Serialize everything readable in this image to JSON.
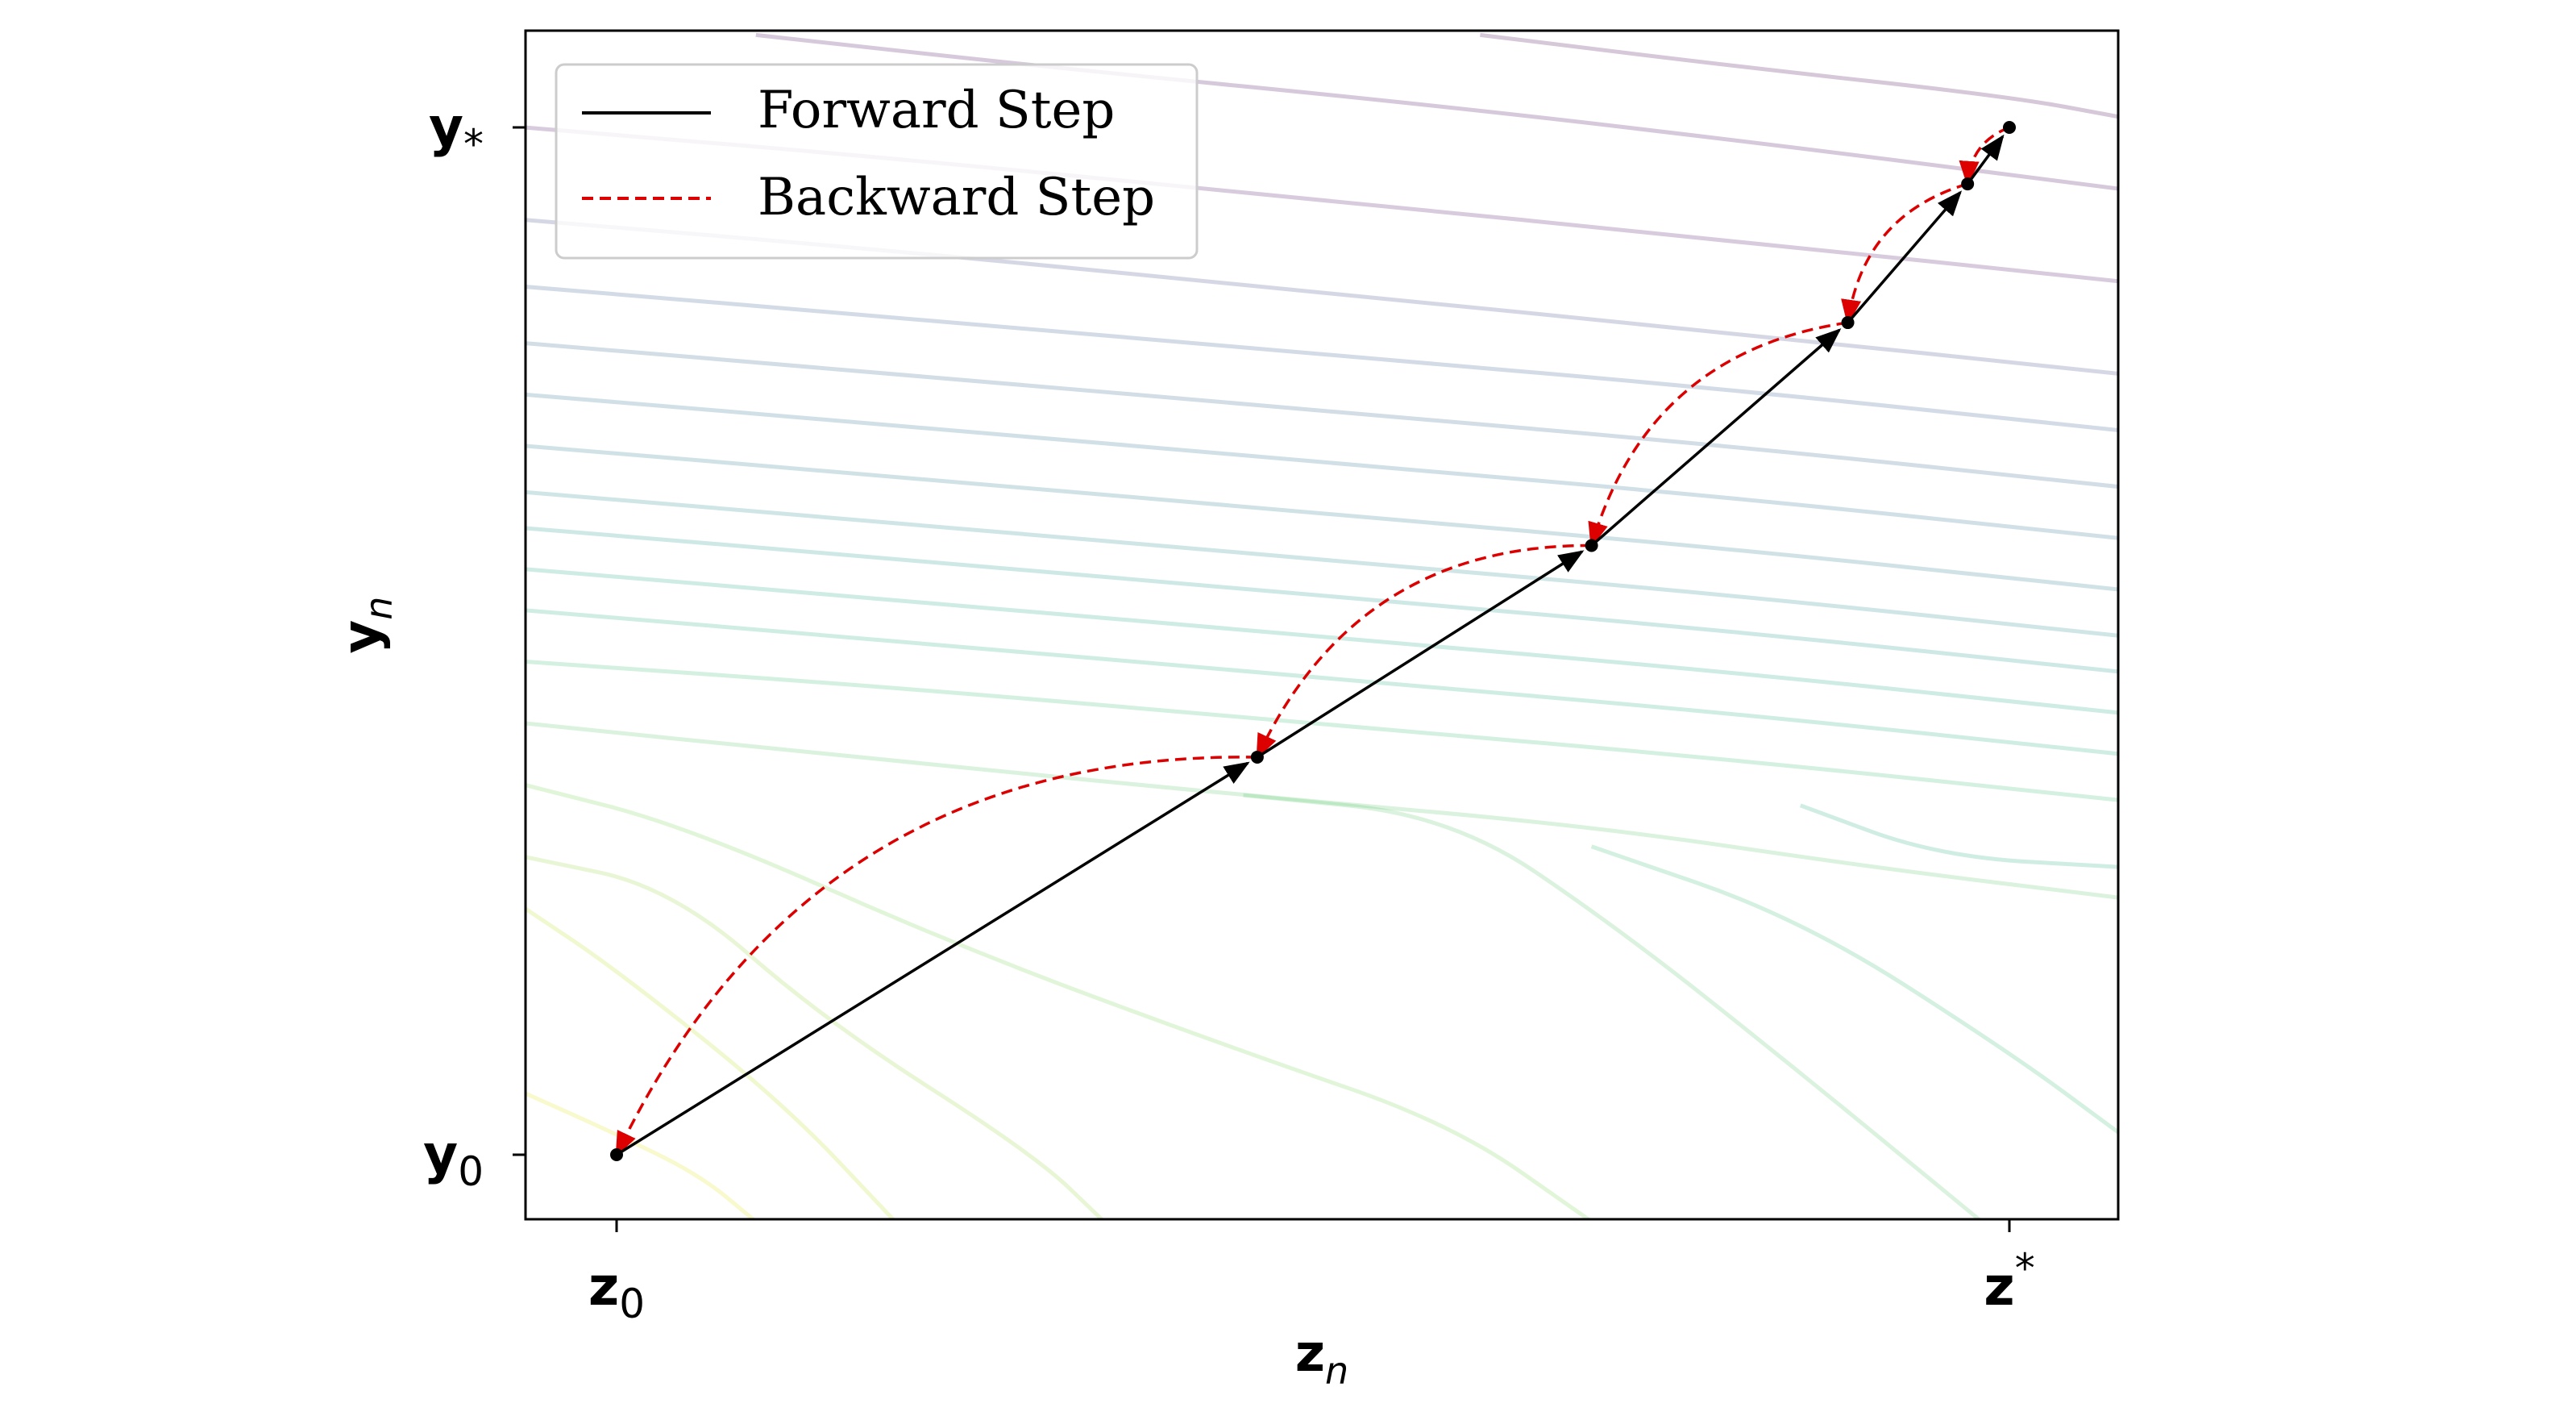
{
  "chart_data": {
    "type": "line",
    "xlabel": {
      "base": "z",
      "sub": "n"
    },
    "ylabel": {
      "base": "y",
      "sub": "n"
    },
    "xlim": [
      -0.066,
      1.08
    ],
    "ylim": [
      -0.065,
      1.09
    ],
    "x_ticks": [
      {
        "value": 0,
        "base": "z",
        "sub": "0",
        "sup": ""
      },
      {
        "value": 1,
        "base": "z",
        "sub": "",
        "sup": "*"
      }
    ],
    "y_ticks": [
      {
        "value": 0,
        "base": "y",
        "sub": "0",
        "sup": ""
      },
      {
        "value": 1,
        "base": "y",
        "sub": "*",
        "sup": ""
      }
    ],
    "legend": {
      "placement": "top-left",
      "entries": [
        {
          "label": "Forward Step",
          "color": "#000000",
          "style": "solid"
        },
        {
          "label": "Backward Step",
          "color": "#dd0000",
          "style": "dashed"
        }
      ]
    },
    "points": [
      {
        "x": 0.0,
        "y": 0.0
      },
      {
        "x": 0.46,
        "y": 0.387
      },
      {
        "x": 0.7,
        "y": 0.593
      },
      {
        "x": 0.884,
        "y": 0.81
      },
      {
        "x": 0.97,
        "y": 0.945
      },
      {
        "x": 1.0,
        "y": 1.0
      }
    ],
    "series": [
      {
        "name": "Forward Step",
        "color": "#000000",
        "style": "solid-arrow"
      },
      {
        "name": "Backward Step",
        "color": "#dd0000",
        "style": "dashed-curved-arrow"
      }
    ],
    "contour_lines": [
      {
        "color": "#440154",
        "points": [
          [
            0.62,
            1.09
          ],
          [
            0.8,
            1.06
          ],
          [
            1.0,
            1.03
          ],
          [
            1.08,
            1.01
          ]
        ]
      },
      {
        "color": "#46085c",
        "points": [
          [
            0.1,
            1.09
          ],
          [
            0.3,
            1.06
          ],
          [
            0.6,
            1.02
          ],
          [
            0.85,
            0.98
          ],
          [
            1.08,
            0.94
          ]
        ]
      },
      {
        "color": "#471063",
        "points": [
          [
            -0.066,
            1.0
          ],
          [
            0.2,
            0.97
          ],
          [
            0.5,
            0.93
          ],
          [
            0.8,
            0.89
          ],
          [
            1.08,
            0.85
          ]
        ]
      },
      {
        "color": "#3e4989",
        "points": [
          [
            -0.066,
            0.91
          ],
          [
            0.2,
            0.88
          ],
          [
            0.5,
            0.84
          ],
          [
            0.8,
            0.8
          ],
          [
            1.08,
            0.76
          ]
        ]
      },
      {
        "color": "#38598c",
        "points": [
          [
            -0.066,
            0.845
          ],
          [
            0.2,
            0.815
          ],
          [
            0.5,
            0.78
          ],
          [
            0.8,
            0.745
          ],
          [
            1.08,
            0.705
          ]
        ]
      },
      {
        "color": "#33638d",
        "points": [
          [
            -0.066,
            0.79
          ],
          [
            0.2,
            0.76
          ],
          [
            0.5,
            0.725
          ],
          [
            0.8,
            0.69
          ],
          [
            1.08,
            0.65
          ]
        ]
      },
      {
        "color": "#2d708e",
        "points": [
          [
            -0.066,
            0.74
          ],
          [
            0.2,
            0.71
          ],
          [
            0.5,
            0.675
          ],
          [
            0.8,
            0.64
          ],
          [
            1.08,
            0.6
          ]
        ]
      },
      {
        "color": "#287d8e",
        "points": [
          [
            -0.066,
            0.69
          ],
          [
            0.2,
            0.66
          ],
          [
            0.5,
            0.625
          ],
          [
            0.8,
            0.59
          ],
          [
            1.08,
            0.55
          ]
        ]
      },
      {
        "color": "#238a8d",
        "points": [
          [
            -0.066,
            0.645
          ],
          [
            0.2,
            0.615
          ],
          [
            0.5,
            0.58
          ],
          [
            0.8,
            0.545
          ],
          [
            1.08,
            0.505
          ]
        ]
      },
      {
        "color": "#1f968b",
        "points": [
          [
            -0.066,
            0.61
          ],
          [
            0.2,
            0.58
          ],
          [
            0.5,
            0.545
          ],
          [
            0.8,
            0.51
          ],
          [
            1.08,
            0.47
          ]
        ]
      },
      {
        "color": "#20a386",
        "points": [
          [
            -0.066,
            0.57
          ],
          [
            0.2,
            0.54
          ],
          [
            0.5,
            0.505
          ],
          [
            0.8,
            0.47
          ],
          [
            1.08,
            0.43
          ]
        ]
      },
      {
        "color": "#29af7f",
        "points": [
          [
            -0.066,
            0.53
          ],
          [
            0.2,
            0.5
          ],
          [
            0.5,
            0.465
          ],
          [
            0.8,
            0.43
          ],
          [
            1.08,
            0.39
          ]
        ]
      },
      {
        "color": "#3dbc74",
        "points": [
          [
            -0.066,
            0.48
          ],
          [
            0.2,
            0.455
          ],
          [
            0.5,
            0.42
          ],
          [
            0.8,
            0.385
          ],
          [
            1.08,
            0.345
          ]
        ]
      },
      {
        "color": "#56c667",
        "points": [
          [
            -0.066,
            0.42
          ],
          [
            0.15,
            0.39
          ],
          [
            0.45,
            0.35
          ],
          [
            0.7,
            0.32
          ],
          [
            0.9,
            0.28
          ],
          [
            1.08,
            0.25
          ]
        ]
      },
      {
        "color": "#75d054",
        "points": [
          [
            -0.066,
            0.36
          ],
          [
            0.05,
            0.32
          ],
          [
            0.25,
            0.2
          ],
          [
            0.45,
            0.1
          ],
          [
            0.6,
            0.03
          ],
          [
            0.7,
            -0.065
          ]
        ]
      },
      {
        "color": "#95d840",
        "points": [
          [
            -0.066,
            0.29
          ],
          [
            0.04,
            0.26
          ],
          [
            0.15,
            0.13
          ],
          [
            0.3,
            0.0
          ],
          [
            0.35,
            -0.065
          ]
        ]
      },
      {
        "color": "#bade28",
        "points": [
          [
            -0.066,
            0.24
          ],
          [
            0.0,
            0.18
          ],
          [
            0.12,
            0.05
          ],
          [
            0.2,
            -0.065
          ]
        ]
      },
      {
        "color": "#dde318",
        "points": [
          [
            -0.066,
            0.06
          ],
          [
            0.0,
            0.02
          ],
          [
            0.06,
            -0.02
          ],
          [
            0.1,
            -0.065
          ]
        ]
      },
      {
        "color": "#56c667",
        "points": [
          [
            0.45,
            0.35
          ],
          [
            0.6,
            0.33
          ],
          [
            0.72,
            0.22
          ],
          [
            0.85,
            0.08
          ],
          [
            0.98,
            -0.065
          ]
        ]
      },
      {
        "color": "#3dbc74",
        "points": [
          [
            0.7,
            0.3
          ],
          [
            0.85,
            0.23
          ],
          [
            1.0,
            0.1
          ],
          [
            1.08,
            0.02
          ]
        ]
      },
      {
        "color": "#29af7f",
        "points": [
          [
            0.85,
            0.34
          ],
          [
            0.95,
            0.29
          ],
          [
            1.08,
            0.28
          ]
        ]
      }
    ]
  }
}
